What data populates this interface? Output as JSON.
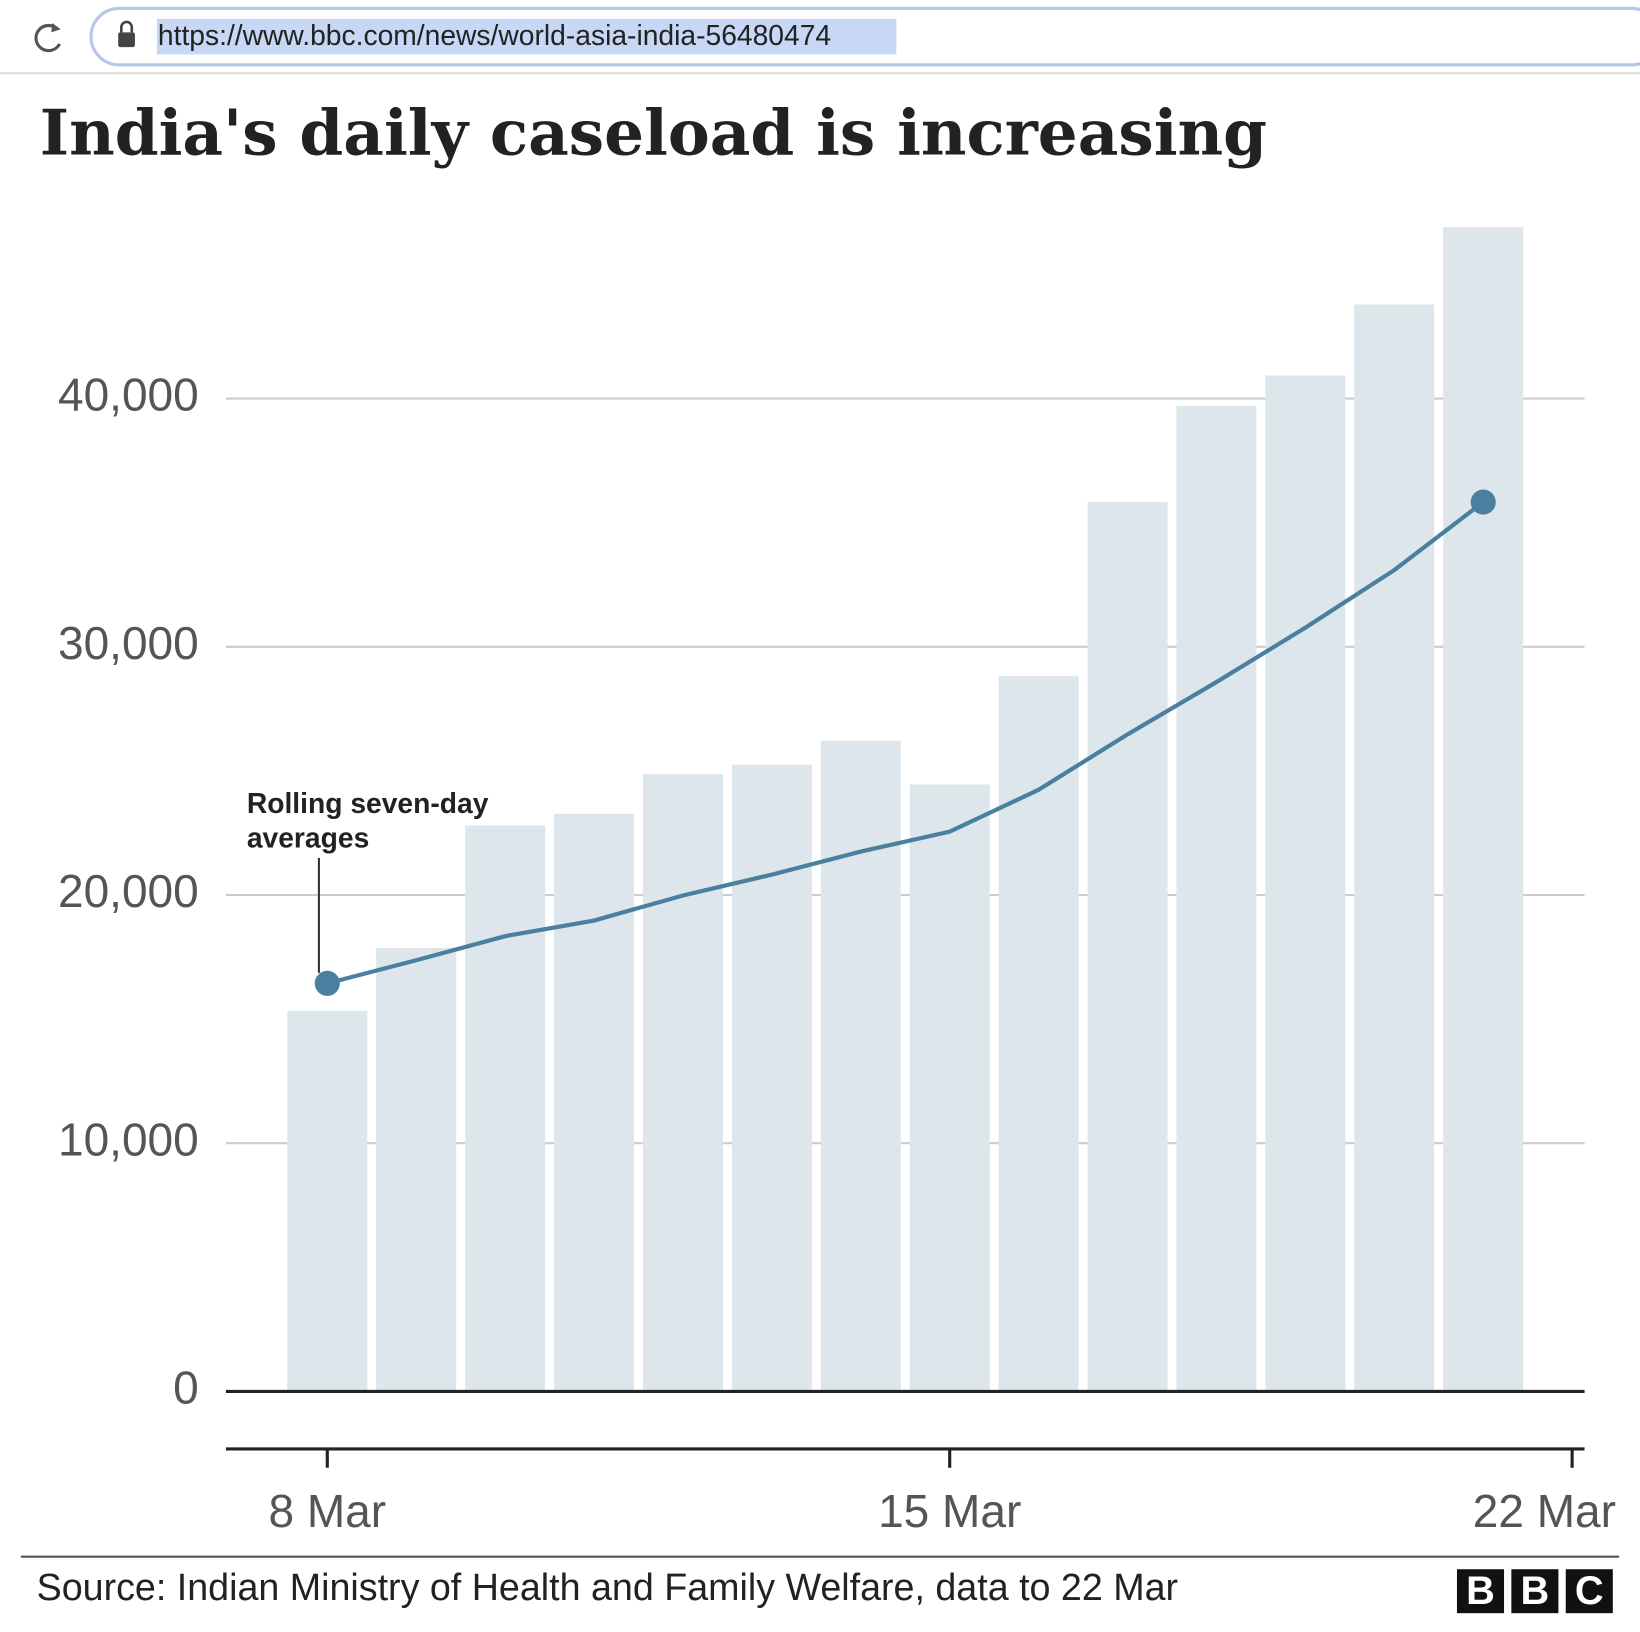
{
  "browser": {
    "url": "https://www.bbc.com/news/world-asia-india-56480474"
  },
  "chart_data": {
    "type": "bar",
    "title": "India's daily caseload is increasing",
    "x": [
      8,
      9,
      10,
      11,
      12,
      13,
      14,
      15,
      16,
      17,
      18,
      19,
      20,
      21
    ],
    "xlim": [
      6.86,
      22.14
    ],
    "xticks": [
      {
        "value": 8,
        "label": "8 Mar"
      },
      {
        "value": 15,
        "label": "15 Mar"
      },
      {
        "value": 22,
        "label": "22 Mar"
      }
    ],
    "ylim": [
      0,
      50000
    ],
    "yticks": [
      0,
      {
        "value": 10000,
        "label": "10,000"
      },
      {
        "value": 20000,
        "label": "20,000"
      },
      {
        "value": 30000,
        "label": "30,000"
      },
      {
        "value": 40000,
        "label": "40,000"
      }
    ],
    "grid": true,
    "series": [
      {
        "type": "bar",
        "color": "#dce6eb",
        "values": [
          15340,
          17870,
          22800,
          23270,
          24870,
          25250,
          26220,
          24450,
          28830,
          35830,
          39700,
          40930,
          43790,
          46910
        ]
      },
      {
        "type": "line",
        "color": "#4a7f9f",
        "values": [
          16440,
          17370,
          18340,
          18970,
          19980,
          20820,
          21750,
          22550,
          24240,
          26470,
          28580,
          30770,
          33090,
          35830
        ]
      }
    ],
    "annotation": [
      "Rolling seven-day",
      "averages"
    ],
    "source": "Source: Indian Ministry of Health and Family Welfare, data to 22 Mar",
    "logo": [
      "B",
      "B",
      "C"
    ]
  }
}
